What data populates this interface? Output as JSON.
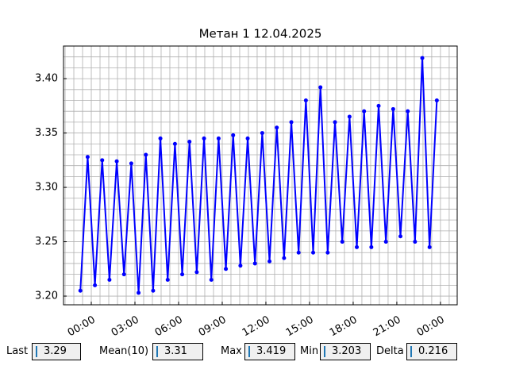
{
  "chart_data": {
    "type": "line",
    "title": "Метан 1 12.04.2025",
    "color": "#0000ff",
    "grid": true,
    "x": [
      -0.75,
      -0.25,
      0.25,
      0.75,
      1.25,
      1.75,
      2.25,
      2.75,
      3.25,
      3.75,
      4.25,
      4.75,
      5.25,
      5.75,
      6.25,
      6.75,
      7.25,
      7.75,
      8.25,
      8.75,
      9.25,
      9.75,
      10.25,
      10.75,
      11.25,
      11.75,
      12.25,
      12.75,
      13.25,
      13.75,
      14.25,
      14.75,
      15.25,
      15.75,
      16.25,
      16.75,
      17.25,
      17.75,
      18.25,
      18.75,
      19.25,
      19.75,
      20.25,
      20.75,
      21.25,
      21.75,
      22.25,
      22.75,
      23.25,
      23.75
    ],
    "values": [
      3.205,
      3.328,
      3.21,
      3.325,
      3.215,
      3.324,
      3.22,
      3.322,
      3.203,
      3.33,
      3.205,
      3.345,
      3.215,
      3.34,
      3.22,
      3.342,
      3.222,
      3.345,
      3.215,
      3.345,
      3.225,
      3.348,
      3.228,
      3.345,
      3.23,
      3.35,
      3.232,
      3.355,
      3.235,
      3.36,
      3.24,
      3.38,
      3.24,
      3.392,
      3.24,
      3.36,
      3.25,
      3.365,
      3.245,
      3.37,
      3.245,
      3.375,
      3.25,
      3.372,
      3.255,
      3.37,
      3.25,
      3.419,
      3.245,
      3.38
    ],
    "xlim": [
      -1.91,
      25.15
    ],
    "xticks": [
      {
        "value": 0,
        "label": "00:00"
      },
      {
        "value": 3,
        "label": "03:00"
      },
      {
        "value": 6,
        "label": "06:00"
      },
      {
        "value": 9,
        "label": "09:00"
      },
      {
        "value": 12,
        "label": "12:00"
      },
      {
        "value": 15,
        "label": "15:00"
      },
      {
        "value": 18,
        "label": "18:00"
      },
      {
        "value": 21,
        "label": "21:00"
      },
      {
        "value": 24,
        "label": "00:00"
      }
    ],
    "xminorticks": [
      -1.8,
      -1.2,
      -0.6,
      0.6,
      1.2,
      1.8,
      2.4,
      3.6,
      4.2,
      4.8,
      5.4,
      6.6,
      7.2,
      7.8,
      8.4,
      9.6,
      10.2,
      10.8,
      11.4,
      12.6,
      13.2,
      13.8,
      14.4,
      15.6,
      16.2,
      16.8,
      17.4,
      18.6,
      19.2,
      19.8,
      20.4,
      21.6,
      22.2,
      22.8,
      23.4,
      24.6
    ],
    "ylim": [
      3.192,
      3.43
    ],
    "yticks": [
      {
        "value": 3.2,
        "label": "3.20"
      },
      3.25,
      {
        "value": 3.3,
        "label": "3.30"
      },
      3.35,
      {
        "value": 3.4,
        "label": "3.40"
      }
    ],
    "yminorticks": [
      3.21,
      3.22,
      3.23,
      3.24,
      3.26,
      3.27,
      3.28,
      3.29,
      3.31,
      3.32,
      3.33,
      3.34,
      3.36,
      3.37,
      3.38,
      3.39,
      3.41,
      3.42
    ]
  },
  "fields": [
    {
      "label": "Last",
      "value": 3.29
    },
    {
      "label": "Mean(10)",
      "value": 3.31
    },
    {
      "label": "Max",
      "value": 3.419
    },
    {
      "label": "Min",
      "value": 3.203
    },
    {
      "label": "Delta",
      "value": 0.216
    }
  ]
}
